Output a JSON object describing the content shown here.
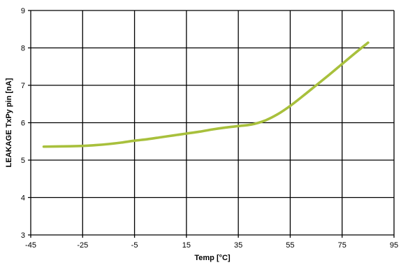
{
  "chart_data": {
    "type": "line",
    "xlabel": "Temp [°C]",
    "ylabel": "LEAKAGE TxPy pin [nA]",
    "xlim": [
      -45,
      95
    ],
    "ylim": [
      3,
      9
    ],
    "xticks": [
      -45,
      -25,
      -5,
      15,
      35,
      55,
      75,
      95
    ],
    "yticks": [
      3,
      4,
      5,
      6,
      7,
      8,
      9
    ],
    "grid": true,
    "legend": "none",
    "series": [
      {
        "color": "#a8c03c",
        "x": [
          -40,
          -30,
          -25,
          -20,
          -15,
          -10,
          -5,
          0,
          5,
          10,
          15,
          20,
          25,
          30,
          35,
          40,
          45,
          50,
          55,
          60,
          65,
          70,
          75,
          80,
          85
        ],
        "y": [
          5.36,
          5.37,
          5.38,
          5.4,
          5.43,
          5.47,
          5.52,
          5.56,
          5.61,
          5.66,
          5.71,
          5.76,
          5.82,
          5.87,
          5.91,
          5.95,
          6.05,
          6.22,
          6.45,
          6.72,
          7.0,
          7.28,
          7.57,
          7.86,
          8.14
        ]
      }
    ]
  }
}
